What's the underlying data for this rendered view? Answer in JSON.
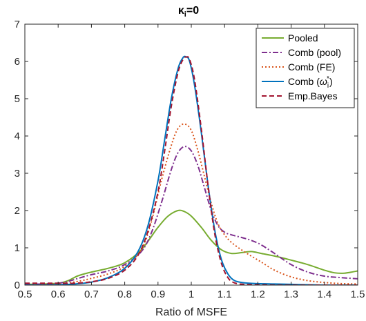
{
  "chart_data": {
    "type": "line",
    "title_main": "κ",
    "title_sub": "i",
    "title_rest": "=0",
    "xlabel": "Ratio of MSFE",
    "ylabel": "",
    "xlim": [
      0.5,
      1.5
    ],
    "ylim": [
      0,
      7
    ],
    "xticks": [
      "0.5",
      "0.6",
      "0.7",
      "0.8",
      "0.9",
      "1",
      "1.1",
      "1.2",
      "1.3",
      "1.4",
      "1.5"
    ],
    "yticks": [
      "0",
      "1",
      "2",
      "3",
      "4",
      "5",
      "6",
      "7"
    ],
    "grid": false,
    "legend_position": "top-right",
    "series": [
      {
        "name": "Pooled",
        "color": "#77AC30",
        "dash": "solid",
        "x": [
          0.5,
          0.55,
          0.6,
          0.63,
          0.66,
          0.7,
          0.75,
          0.8,
          0.85,
          0.9,
          0.93,
          0.96,
          0.98,
          1.0,
          1.03,
          1.06,
          1.09,
          1.12,
          1.15,
          1.18,
          1.21,
          1.25,
          1.3,
          1.35,
          1.4,
          1.43,
          1.46,
          1.5
        ],
        "y": [
          0.02,
          0.03,
          0.05,
          0.12,
          0.25,
          0.35,
          0.45,
          0.6,
          0.95,
          1.55,
          1.85,
          2.0,
          1.97,
          1.85,
          1.55,
          1.2,
          0.95,
          0.85,
          0.87,
          0.9,
          0.85,
          0.78,
          0.67,
          0.55,
          0.4,
          0.33,
          0.32,
          0.38
        ]
      },
      {
        "name": "Comb (pool)",
        "color": "#7E2F8E",
        "dash": "dashdot",
        "x": [
          0.5,
          0.55,
          0.6,
          0.63,
          0.66,
          0.7,
          0.75,
          0.8,
          0.85,
          0.88,
          0.91,
          0.94,
          0.96,
          0.98,
          1.0,
          1.02,
          1.04,
          1.06,
          1.08,
          1.1,
          1.12,
          1.15,
          1.18,
          1.21,
          1.25,
          1.3,
          1.35,
          1.4,
          1.45,
          1.5
        ],
        "y": [
          0.02,
          0.03,
          0.05,
          0.1,
          0.18,
          0.28,
          0.38,
          0.55,
          0.9,
          1.4,
          2.2,
          3.1,
          3.55,
          3.72,
          3.6,
          3.2,
          2.6,
          2.0,
          1.6,
          1.42,
          1.35,
          1.28,
          1.2,
          1.08,
          0.85,
          0.55,
          0.35,
          0.24,
          0.2,
          0.17
        ]
      },
      {
        "name": "Comb (FE)",
        "color": "#D95319",
        "dash": "dotted",
        "x": [
          0.5,
          0.55,
          0.6,
          0.63,
          0.66,
          0.7,
          0.75,
          0.8,
          0.85,
          0.88,
          0.91,
          0.94,
          0.96,
          0.98,
          1.0,
          1.02,
          1.04,
          1.06,
          1.08,
          1.1,
          1.12,
          1.15,
          1.18,
          1.21,
          1.25,
          1.3,
          1.35,
          1.4,
          1.45,
          1.5
        ],
        "y": [
          0.0,
          0.01,
          0.03,
          0.06,
          0.1,
          0.18,
          0.3,
          0.5,
          0.95,
          1.7,
          2.8,
          3.75,
          4.2,
          4.32,
          4.15,
          3.6,
          2.9,
          2.2,
          1.65,
          1.35,
          1.15,
          0.95,
          0.78,
          0.62,
          0.4,
          0.22,
          0.12,
          0.07,
          0.04,
          0.03
        ]
      },
      {
        "name": "Comb (ω_i^*)",
        "color": "#0072BD",
        "dash": "solid",
        "x": [
          0.5,
          0.55,
          0.6,
          0.65,
          0.7,
          0.75,
          0.8,
          0.84,
          0.87,
          0.9,
          0.92,
          0.94,
          0.96,
          0.975,
          0.985,
          0.995,
          1.01,
          1.03,
          1.05,
          1.07,
          1.09,
          1.11,
          1.13,
          1.16,
          1.2,
          1.25,
          1.3,
          1.35,
          1.4,
          1.5
        ],
        "y": [
          0.0,
          0.0,
          0.01,
          0.03,
          0.08,
          0.2,
          0.45,
          0.9,
          1.6,
          2.8,
          3.9,
          5.0,
          5.8,
          6.1,
          6.12,
          6.0,
          5.35,
          4.1,
          2.7,
          1.5,
          0.7,
          0.3,
          0.12,
          0.06,
          0.04,
          0.03,
          0.02,
          0.01,
          0.0,
          0.0
        ]
      },
      {
        "name": "Emp.Bayes",
        "color": "#A2142F",
        "dash": "dashed",
        "x": [
          0.5,
          0.55,
          0.6,
          0.65,
          0.7,
          0.75,
          0.8,
          0.84,
          0.87,
          0.9,
          0.92,
          0.94,
          0.96,
          0.975,
          0.985,
          0.995,
          1.01,
          1.03,
          1.05,
          1.07,
          1.09,
          1.11,
          1.13,
          1.16,
          1.2,
          1.25,
          1.3,
          1.35,
          1.4,
          1.5
        ],
        "y": [
          0.05,
          0.05,
          0.05,
          0.05,
          0.09,
          0.18,
          0.4,
          0.8,
          1.45,
          2.5,
          3.6,
          4.8,
          5.7,
          6.05,
          6.12,
          6.05,
          5.5,
          4.2,
          2.7,
          1.4,
          0.6,
          0.2,
          0.06,
          0.02,
          0.01,
          0.0,
          0.0,
          0.0,
          0.0,
          0.0
        ]
      }
    ]
  }
}
